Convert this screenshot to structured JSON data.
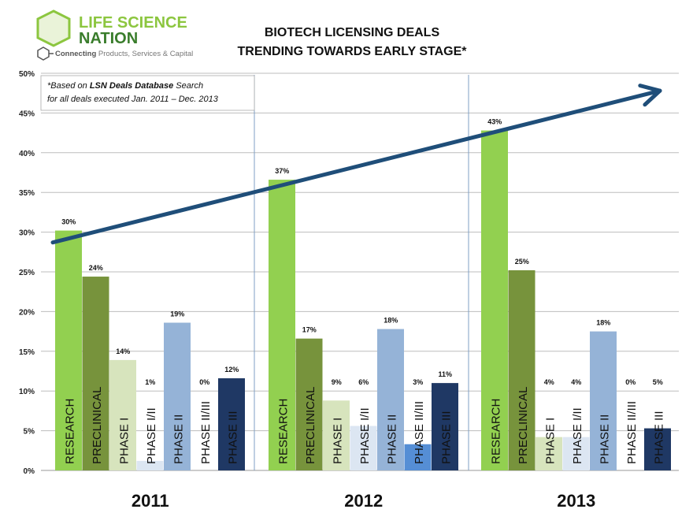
{
  "logo": {
    "name_line1": "LIFE SCIENCE",
    "name_line2": "NATION",
    "tagline_bold": "Connecting",
    "tagline_rest": " Products, Services & Capital"
  },
  "note": {
    "prefix": "*Based on ",
    "bold": "LSN Deals Database",
    "suffix": " Search",
    "line2": "for all deals executed Jan. 2011 – Dec. 2013"
  },
  "chart_data": {
    "type": "bar",
    "title_line1": "BIOTECH LICENSING DEALS",
    "title_line2": "TRENDING TOWARDS EARLY STAGE*",
    "ylim": [
      0,
      50
    ],
    "yticks": [
      "0%",
      "5%",
      "10%",
      "15%",
      "20%",
      "25%",
      "30%",
      "35%",
      "40%",
      "45%",
      "50%"
    ],
    "grid": true,
    "groups": [
      "2011",
      "2012",
      "2013"
    ],
    "categories": [
      "RESEARCH",
      "PRECLINICAL",
      "PHASE I",
      "PHASE I/II",
      "PHASE II",
      "PHASE II/III",
      "PHASE III"
    ],
    "colors": [
      "#92d050",
      "#77933c",
      "#d7e4bd",
      "#dce6f2",
      "#95b3d7",
      "#558ed5",
      "#1f3864"
    ],
    "values": [
      [
        30.2,
        24.4,
        13.9,
        1.2,
        18.6,
        0,
        11.6
      ],
      [
        36.6,
        16.6,
        8.8,
        5.6,
        17.8,
        3.3,
        11.0
      ],
      [
        42.8,
        25.2,
        4.2,
        4.2,
        17.5,
        0,
        5.3
      ]
    ],
    "data_labels": [
      [
        "30%",
        "24%",
        "14%",
        "1%",
        "19%",
        "0%",
        "12%"
      ],
      [
        "37%",
        "17%",
        "9%",
        "6%",
        "18%",
        "3%",
        "11%"
      ],
      [
        "43%",
        "25%",
        "4%",
        "4%",
        "18%",
        "0%",
        "5%"
      ]
    ],
    "trend_arrow": {
      "from": 28.7,
      "to": 47.8,
      "color": "#1f4e79"
    }
  }
}
